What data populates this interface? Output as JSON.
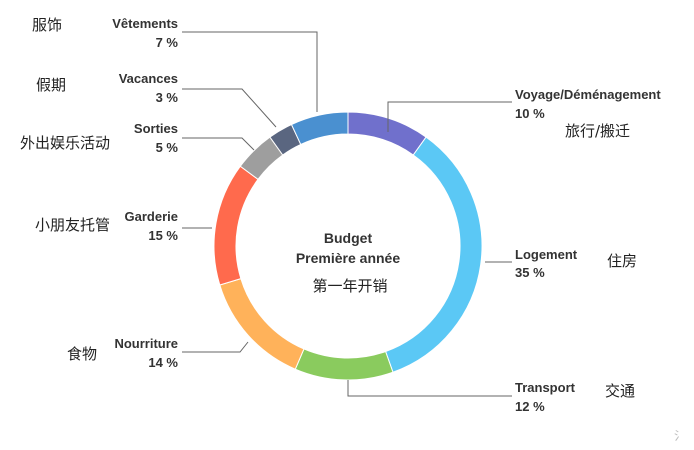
{
  "chart_data": {
    "type": "pie",
    "donut": true,
    "center_title": [
      "Budget",
      "Première année"
    ],
    "center_subtitle": "第一年开销",
    "series": [
      {
        "name": "Voyage/Déménagement",
        "zh": "旅行/搬迁",
        "label": "10 %",
        "value": 10,
        "color": "#7070CC"
      },
      {
        "name": "Logement",
        "zh": "住房",
        "label": "35 %",
        "value": 35,
        "color": "#5BC8F5"
      },
      {
        "name": "Transport",
        "zh": "交通",
        "label": "12 %",
        "value": 12,
        "color": "#8ACB5E"
      },
      {
        "name": "Nourriture",
        "zh": "食物",
        "label": "14 %",
        "value": 14,
        "color": "#FFB25A"
      },
      {
        "name": "Garderie",
        "zh": "小朋友托管",
        "label": "15 %",
        "value": 15,
        "color": "#FF6A4D"
      },
      {
        "name": "Sorties",
        "zh": "外出娱乐活动",
        "label": "5 %",
        "value": 5,
        "color": "#9E9E9E"
      },
      {
        "name": "Vacances",
        "zh": "假期",
        "label": "3 %",
        "value": 3,
        "color": "#5A6680"
      },
      {
        "name": "Vêtements",
        "zh": "服饰",
        "label": "7 %",
        "value": 7,
        "color": "#4A90D0"
      }
    ]
  },
  "corner_mark": "氵"
}
